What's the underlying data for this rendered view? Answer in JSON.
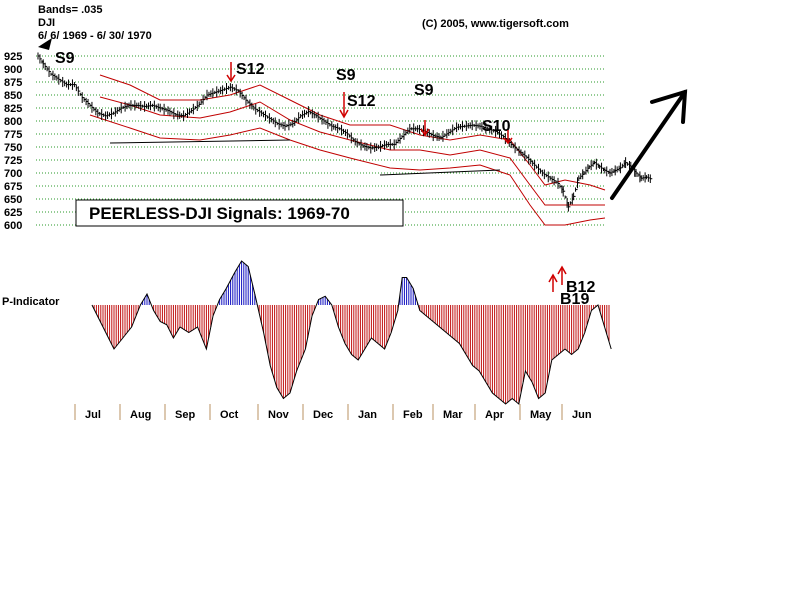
{
  "header": {
    "bands": "Bands= .035",
    "symbol": "DJI",
    "date_range": "6/ 6/ 1969 - 6/ 30/ 1970",
    "copyright": "(C) 2005, www.tigersoft.com"
  },
  "chart_data": {
    "type": "line",
    "title": "PEERLESS-DJI Signals: 1969-70",
    "indicator_label": "P-Indicator",
    "y_ticks": [
      "925",
      "900",
      "875",
      "850",
      "825",
      "800",
      "775",
      "750",
      "725",
      "700",
      "675",
      "650",
      "625",
      "600"
    ],
    "ylim": [
      600,
      925
    ],
    "months": [
      "Jul",
      "Aug",
      "Sep",
      "Oct",
      "Nov",
      "Dec",
      "Jan",
      "Feb",
      "Mar",
      "Apr",
      "May",
      "Jun"
    ],
    "price_series": {
      "name": "DJI",
      "points": [
        [
          0,
          925
        ],
        [
          4,
          910
        ],
        [
          10,
          890
        ],
        [
          16,
          880
        ],
        [
          22,
          870
        ],
        [
          28,
          870
        ],
        [
          34,
          845
        ],
        [
          40,
          830
        ],
        [
          46,
          815
        ],
        [
          52,
          810
        ],
        [
          58,
          815
        ],
        [
          64,
          825
        ],
        [
          70,
          830
        ],
        [
          76,
          830
        ],
        [
          82,
          828
        ],
        [
          88,
          830
        ],
        [
          94,
          825
        ],
        [
          100,
          820
        ],
        [
          106,
          812
        ],
        [
          112,
          810
        ],
        [
          118,
          820
        ],
        [
          124,
          832
        ],
        [
          130,
          850
        ],
        [
          136,
          855
        ],
        [
          142,
          860
        ],
        [
          148,
          865
        ],
        [
          154,
          858
        ],
        [
          160,
          840
        ],
        [
          166,
          825
        ],
        [
          172,
          815
        ],
        [
          178,
          805
        ],
        [
          184,
          795
        ],
        [
          190,
          790
        ],
        [
          196,
          795
        ],
        [
          202,
          810
        ],
        [
          208,
          818
        ],
        [
          214,
          810
        ],
        [
          220,
          800
        ],
        [
          226,
          790
        ],
        [
          232,
          785
        ],
        [
          238,
          775
        ],
        [
          244,
          760
        ],
        [
          250,
          752
        ],
        [
          256,
          748
        ],
        [
          262,
          750
        ],
        [
          268,
          755
        ],
        [
          274,
          755
        ],
        [
          280,
          770
        ],
        [
          286,
          785
        ],
        [
          292,
          785
        ],
        [
          298,
          780
        ],
        [
          304,
          772
        ],
        [
          310,
          768
        ],
        [
          316,
          778
        ],
        [
          322,
          788
        ],
        [
          328,
          790
        ],
        [
          334,
          792
        ],
        [
          340,
          790
        ],
        [
          346,
          785
        ],
        [
          352,
          780
        ],
        [
          358,
          770
        ],
        [
          364,
          755
        ],
        [
          370,
          742
        ],
        [
          376,
          730
        ],
        [
          382,
          715
        ],
        [
          388,
          700
        ],
        [
          394,
          690
        ],
        [
          400,
          680
        ],
        [
          404,
          665
        ],
        [
          408,
          635
        ],
        [
          412,
          655
        ],
        [
          416,
          690
        ],
        [
          420,
          700
        ],
        [
          424,
          712
        ],
        [
          428,
          720
        ],
        [
          432,
          712
        ],
        [
          436,
          705
        ],
        [
          440,
          700
        ],
        [
          444,
          705
        ],
        [
          448,
          710
        ],
        [
          452,
          720
        ],
        [
          456,
          712
        ],
        [
          460,
          700
        ],
        [
          464,
          690
        ],
        [
          468,
          692
        ],
        [
          472,
          688
        ]
      ]
    },
    "indicator_series": {
      "name": "P-Indicator",
      "points": [
        [
          0,
          0
        ],
        [
          10,
          -20
        ],
        [
          20,
          -40
        ],
        [
          28,
          -30
        ],
        [
          36,
          -20
        ],
        [
          44,
          0
        ],
        [
          50,
          10
        ],
        [
          56,
          -5
        ],
        [
          62,
          -15
        ],
        [
          68,
          -18
        ],
        [
          74,
          -30
        ],
        [
          80,
          -20
        ],
        [
          88,
          -25
        ],
        [
          96,
          -20
        ],
        [
          104,
          -40
        ],
        [
          110,
          -10
        ],
        [
          116,
          5
        ],
        [
          122,
          15
        ],
        [
          130,
          30
        ],
        [
          136,
          40
        ],
        [
          142,
          35
        ],
        [
          148,
          10
        ],
        [
          156,
          -25
        ],
        [
          162,
          -55
        ],
        [
          168,
          -75
        ],
        [
          174,
          -85
        ],
        [
          180,
          -80
        ],
        [
          186,
          -60
        ],
        [
          194,
          -40
        ],
        [
          200,
          -10
        ],
        [
          206,
          5
        ],
        [
          212,
          8
        ],
        [
          218,
          0
        ],
        [
          224,
          -20
        ],
        [
          230,
          -35
        ],
        [
          236,
          -45
        ],
        [
          242,
          -50
        ],
        [
          248,
          -40
        ],
        [
          254,
          -30
        ],
        [
          260,
          -35
        ],
        [
          266,
          -40
        ],
        [
          272,
          -25
        ],
        [
          278,
          -5
        ],
        [
          282,
          25
        ],
        [
          286,
          25
        ],
        [
          292,
          15
        ],
        [
          298,
          -5
        ],
        [
          304,
          -10
        ],
        [
          310,
          -15
        ],
        [
          316,
          -20
        ],
        [
          322,
          -25
        ],
        [
          328,
          -30
        ],
        [
          334,
          -35
        ],
        [
          340,
          -45
        ],
        [
          346,
          -55
        ],
        [
          352,
          -60
        ],
        [
          358,
          -70
        ],
        [
          364,
          -80
        ],
        [
          370,
          -85
        ],
        [
          376,
          -90
        ],
        [
          382,
          -85
        ],
        [
          388,
          -90
        ],
        [
          394,
          -60
        ],
        [
          400,
          -70
        ],
        [
          406,
          -85
        ],
        [
          412,
          -80
        ],
        [
          418,
          -50
        ],
        [
          424,
          -45
        ],
        [
          430,
          -40
        ],
        [
          436,
          -45
        ],
        [
          442,
          -40
        ],
        [
          448,
          -25
        ],
        [
          454,
          -5
        ],
        [
          460,
          0
        ],
        [
          466,
          -20
        ],
        [
          472,
          -40
        ]
      ]
    },
    "signals": [
      {
        "label": "S9",
        "direction": "sell"
      },
      {
        "label": "S12",
        "direction": "sell"
      },
      {
        "label": "S9",
        "direction": "sell"
      },
      {
        "label": "S12",
        "direction": "sell"
      },
      {
        "label": "S9",
        "direction": "sell"
      },
      {
        "label": "S10",
        "direction": "sell"
      },
      {
        "label": "B12",
        "direction": "buy"
      },
      {
        "label": "B19",
        "direction": "buy"
      }
    ]
  }
}
